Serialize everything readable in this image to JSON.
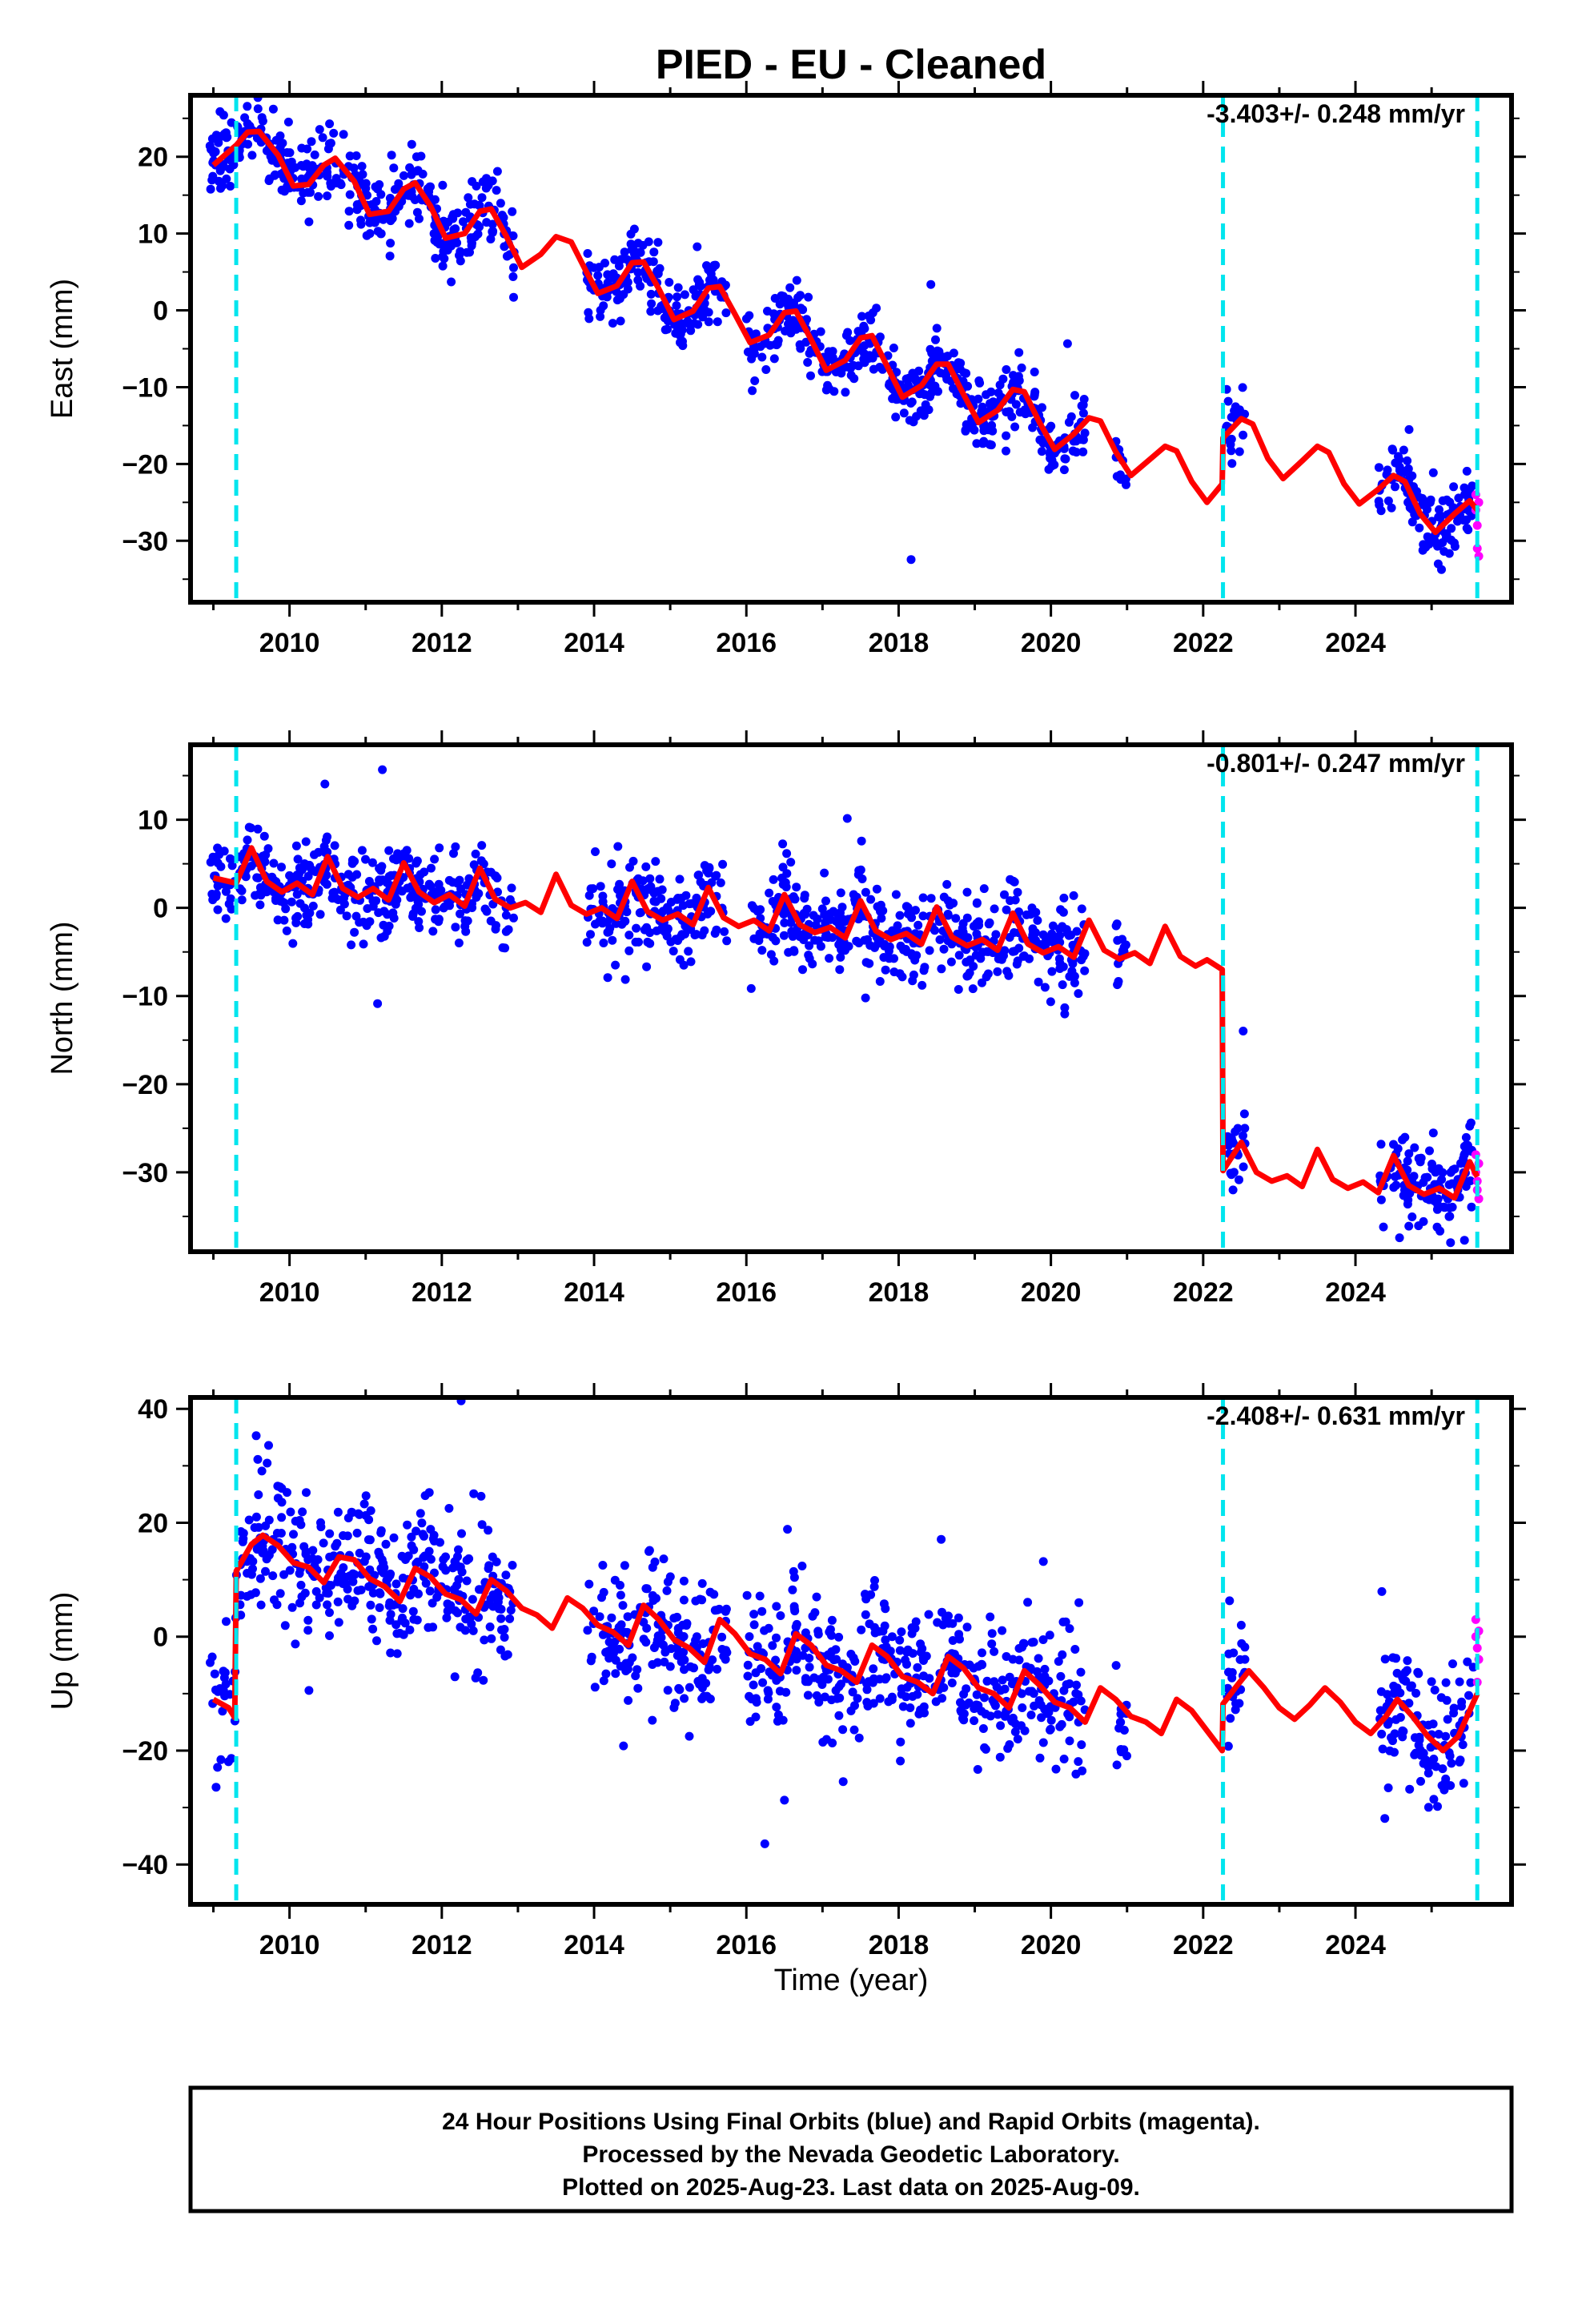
{
  "title": "PIED  - EU - Cleaned",
  "xlabel": "Time (year)",
  "footer": {
    "line1": "24 Hour Positions Using Final Orbits (blue) and Rapid Orbits (magenta).",
    "line2": "Processed by the Nevada Geodetic Laboratory.",
    "line3": "Plotted on 2025-Aug-23. Last data on 2025-Aug-09."
  },
  "colors": {
    "final_points": "#0000ff",
    "rapid_points": "#ff00ff",
    "model_line": "#ff0000",
    "event_lines": "#00e5ee"
  },
  "chart_data": [
    {
      "type": "scatter",
      "title": "",
      "ylabel": "East (mm)",
      "rate_label": "-3.403+/- 0.248 mm/yr",
      "xlim": [
        2008.7,
        2026.05
      ],
      "ylim": [
        -38,
        28
      ],
      "xticks": [
        2010,
        2012,
        2014,
        2016,
        2018,
        2020,
        2022,
        2024
      ],
      "yticks": [
        -30,
        -20,
        -10,
        0,
        10,
        20
      ],
      "grid": false,
      "event_lines": [
        2009.3,
        2022.26,
        2025.6
      ],
      "model": [
        [
          2009.0,
          18.9
        ],
        [
          2009.3,
          21.5
        ],
        [
          2009.45,
          23.2
        ],
        [
          2009.6,
          23.3
        ],
        [
          2009.85,
          20.2
        ],
        [
          2010.05,
          16.2
        ],
        [
          2010.25,
          16.4
        ],
        [
          2010.45,
          18.9
        ],
        [
          2010.6,
          19.8
        ],
        [
          2010.85,
          16.8
        ],
        [
          2011.05,
          12.5
        ],
        [
          2011.3,
          12.9
        ],
        [
          2011.5,
          15.8
        ],
        [
          2011.65,
          16.6
        ],
        [
          2011.85,
          13.6
        ],
        [
          2012.05,
          9.4
        ],
        [
          2012.3,
          10.0
        ],
        [
          2012.5,
          12.9
        ],
        [
          2012.65,
          13.2
        ],
        [
          2012.85,
          9.6
        ],
        [
          2013.05,
          5.6
        ],
        [
          2013.3,
          7.3
        ],
        [
          2013.5,
          9.6
        ],
        [
          2013.7,
          8.9
        ],
        [
          2013.9,
          5.0
        ],
        [
          2014.05,
          2.2
        ],
        [
          2014.3,
          3.2
        ],
        [
          2014.5,
          6.2
        ],
        [
          2014.65,
          6.3
        ],
        [
          2014.85,
          2.8
        ],
        [
          2015.05,
          -1.2
        ],
        [
          2015.3,
          -0.1
        ],
        [
          2015.5,
          2.9
        ],
        [
          2015.65,
          3.1
        ],
        [
          2015.85,
          -0.5
        ],
        [
          2016.05,
          -4.2
        ],
        [
          2016.3,
          -3.2
        ],
        [
          2016.5,
          -0.3
        ],
        [
          2016.65,
          -0.1
        ],
        [
          2016.85,
          -3.8
        ],
        [
          2017.05,
          -7.8
        ],
        [
          2017.3,
          -6.5
        ],
        [
          2017.5,
          -3.6
        ],
        [
          2017.65,
          -3.3
        ],
        [
          2017.85,
          -7.3
        ],
        [
          2018.05,
          -11.3
        ],
        [
          2018.3,
          -9.8
        ],
        [
          2018.5,
          -7.0
        ],
        [
          2018.65,
          -7.0
        ],
        [
          2018.85,
          -10.9
        ],
        [
          2019.05,
          -14.6
        ],
        [
          2019.3,
          -13.0
        ],
        [
          2019.5,
          -10.3
        ],
        [
          2019.65,
          -10.6
        ],
        [
          2019.85,
          -14.6
        ],
        [
          2020.05,
          -18.1
        ],
        [
          2020.3,
          -16.1
        ],
        [
          2020.5,
          -14.0
        ],
        [
          2020.65,
          -14.4
        ],
        [
          2020.85,
          -18.4
        ],
        [
          2021.05,
          -21.5
        ],
        [
          2021.3,
          -19.4
        ],
        [
          2021.5,
          -17.7
        ],
        [
          2021.65,
          -18.3
        ],
        [
          2021.85,
          -22.3
        ],
        [
          2022.05,
          -25.0
        ],
        [
          2022.25,
          -22.6
        ],
        [
          2022.26,
          -16.6
        ],
        [
          2022.5,
          -14.1
        ],
        [
          2022.65,
          -14.8
        ],
        [
          2022.85,
          -19.3
        ],
        [
          2023.05,
          -21.9
        ],
        [
          2023.3,
          -19.6
        ],
        [
          2023.5,
          -17.7
        ],
        [
          2023.65,
          -18.5
        ],
        [
          2023.85,
          -22.6
        ],
        [
          2024.05,
          -25.2
        ],
        [
          2024.3,
          -23.3
        ],
        [
          2024.5,
          -21.5
        ],
        [
          2024.65,
          -22.3
        ],
        [
          2024.85,
          -26.5
        ],
        [
          2025.05,
          -28.9
        ],
        [
          2025.3,
          -26.5
        ],
        [
          2025.5,
          -24.8
        ],
        [
          2025.6,
          -26.0
        ]
      ],
      "segments": [
        [
          2008.95,
          2012.95,
          "pre"
        ],
        [
          2013.9,
          2015.75,
          "mid"
        ],
        [
          2016.0,
          2019.85,
          "mid"
        ],
        [
          2019.85,
          2020.45,
          "late"
        ],
        [
          2020.85,
          2021.0,
          "late"
        ],
        [
          2022.3,
          2022.55,
          "post"
        ],
        [
          2024.3,
          2025.55,
          "post"
        ]
      ],
      "scatter_sigma": 2.2,
      "rapid": [
        [
          2025.58,
          -24
        ],
        [
          2025.58,
          -26
        ],
        [
          2025.6,
          -28
        ],
        [
          2025.6,
          -31
        ],
        [
          2025.62,
          -32
        ],
        [
          2025.62,
          -25
        ]
      ]
    },
    {
      "type": "scatter",
      "title": "",
      "ylabel": "North (mm)",
      "rate_label": "-0.801+/- 0.247 mm/yr",
      "xlim": [
        2008.7,
        2026.05
      ],
      "ylim": [
        -39,
        18.5
      ],
      "xticks": [
        2010,
        2012,
        2014,
        2016,
        2018,
        2020,
        2022,
        2024
      ],
      "yticks": [
        -30,
        -20,
        -10,
        0,
        10
      ],
      "grid": false,
      "event_lines": [
        2009.3,
        2022.26,
        2025.6
      ],
      "model": [
        [
          2009.0,
          3.4
        ],
        [
          2009.3,
          2.8
        ],
        [
          2009.5,
          6.8
        ],
        [
          2009.7,
          3.0
        ],
        [
          2009.9,
          1.8
        ],
        [
          2010.1,
          2.8
        ],
        [
          2010.3,
          1.5
        ],
        [
          2010.5,
          5.8
        ],
        [
          2010.7,
          2.2
        ],
        [
          2010.9,
          1.2
        ],
        [
          2011.1,
          2.2
        ],
        [
          2011.3,
          0.9
        ],
        [
          2011.5,
          5.1
        ],
        [
          2011.7,
          1.8
        ],
        [
          2011.9,
          0.6
        ],
        [
          2012.1,
          1.5
        ],
        [
          2012.3,
          0.2
        ],
        [
          2012.5,
          4.5
        ],
        [
          2012.7,
          1.0
        ],
        [
          2012.9,
          0.0
        ],
        [
          2013.1,
          0.6
        ],
        [
          2013.3,
          -0.5
        ],
        [
          2013.5,
          3.8
        ],
        [
          2013.7,
          0.3
        ],
        [
          2013.9,
          -0.7
        ],
        [
          2014.1,
          0.0
        ],
        [
          2014.3,
          -1.2
        ],
        [
          2014.5,
          3.0
        ],
        [
          2014.7,
          -0.4
        ],
        [
          2014.9,
          -1.4
        ],
        [
          2015.1,
          -0.7
        ],
        [
          2015.3,
          -1.9
        ],
        [
          2015.5,
          2.3
        ],
        [
          2015.7,
          -1.1
        ],
        [
          2015.9,
          -2.1
        ],
        [
          2016.1,
          -1.4
        ],
        [
          2016.3,
          -2.6
        ],
        [
          2016.5,
          1.5
        ],
        [
          2016.7,
          -1.9
        ],
        [
          2016.9,
          -2.8
        ],
        [
          2017.1,
          -2.2
        ],
        [
          2017.3,
          -3.4
        ],
        [
          2017.5,
          0.8
        ],
        [
          2017.7,
          -2.6
        ],
        [
          2017.9,
          -3.6
        ],
        [
          2018.1,
          -2.9
        ],
        [
          2018.3,
          -4.1
        ],
        [
          2018.5,
          0.1
        ],
        [
          2018.7,
          -3.3
        ],
        [
          2018.9,
          -4.3
        ],
        [
          2019.1,
          -3.6
        ],
        [
          2019.3,
          -4.8
        ],
        [
          2019.5,
          -0.6
        ],
        [
          2019.7,
          -4.1
        ],
        [
          2019.9,
          -5.1
        ],
        [
          2020.1,
          -4.4
        ],
        [
          2020.3,
          -5.6
        ],
        [
          2020.5,
          -1.4
        ],
        [
          2020.7,
          -4.8
        ],
        [
          2020.9,
          -5.8
        ],
        [
          2021.1,
          -5.1
        ],
        [
          2021.3,
          -6.3
        ],
        [
          2021.5,
          -2.1
        ],
        [
          2021.7,
          -5.5
        ],
        [
          2021.9,
          -6.6
        ],
        [
          2022.05,
          -5.9
        ],
        [
          2022.25,
          -7.0
        ],
        [
          2022.26,
          -29.8
        ],
        [
          2022.5,
          -26.6
        ],
        [
          2022.7,
          -30.0
        ],
        [
          2022.9,
          -31.0
        ],
        [
          2023.1,
          -30.4
        ],
        [
          2023.3,
          -31.6
        ],
        [
          2023.5,
          -27.4
        ],
        [
          2023.7,
          -30.8
        ],
        [
          2023.9,
          -31.8
        ],
        [
          2024.1,
          -31.1
        ],
        [
          2024.3,
          -32.3
        ],
        [
          2024.5,
          -28.1
        ],
        [
          2024.7,
          -31.5
        ],
        [
          2024.9,
          -32.5
        ],
        [
          2025.1,
          -31.8
        ],
        [
          2025.3,
          -32.9
        ],
        [
          2025.5,
          -28.8
        ],
        [
          2025.6,
          -30.5
        ]
      ],
      "segments": [
        [
          2008.95,
          2012.95,
          "pre"
        ],
        [
          2013.9,
          2015.75,
          "mid"
        ],
        [
          2016.0,
          2019.85,
          "mid"
        ],
        [
          2019.85,
          2020.45,
          "late"
        ],
        [
          2020.85,
          2021.0,
          "late"
        ],
        [
          2022.3,
          2022.55,
          "post"
        ],
        [
          2024.3,
          2025.55,
          "post"
        ]
      ],
      "scatter_sigma": 2.4,
      "rapid": [
        [
          2025.58,
          -28
        ],
        [
          2025.58,
          -30
        ],
        [
          2025.6,
          -31
        ],
        [
          2025.6,
          -32
        ],
        [
          2025.62,
          -33
        ],
        [
          2025.62,
          -29
        ]
      ]
    },
    {
      "type": "scatter",
      "title": "",
      "ylabel": "Up (mm)",
      "rate_label": "-2.408+/- 0.631 mm/yr",
      "xlim": [
        2008.7,
        2026.05
      ],
      "ylim": [
        -47,
        42
      ],
      "xticks": [
        2010,
        2012,
        2014,
        2016,
        2018,
        2020,
        2022,
        2024
      ],
      "yticks": [
        -40,
        -20,
        0,
        20,
        40
      ],
      "grid": false,
      "event_lines": [
        2009.3,
        2022.26,
        2025.6
      ],
      "model": [
        [
          2009.0,
          -11.0
        ],
        [
          2009.2,
          -12.5
        ],
        [
          2009.28,
          -14.2
        ],
        [
          2009.3,
          11.5
        ],
        [
          2009.5,
          16.2
        ],
        [
          2009.65,
          17.8
        ],
        [
          2009.85,
          16.0
        ],
        [
          2010.05,
          13.0
        ],
        [
          2010.25,
          12.2
        ],
        [
          2010.45,
          9.5
        ],
        [
          2010.65,
          14.0
        ],
        [
          2010.85,
          13.5
        ],
        [
          2011.05,
          10.2
        ],
        [
          2011.25,
          8.8
        ],
        [
          2011.45,
          6.2
        ],
        [
          2011.65,
          12.0
        ],
        [
          2011.85,
          10.5
        ],
        [
          2012.05,
          7.5
        ],
        [
          2012.25,
          6.5
        ],
        [
          2012.45,
          4.0
        ],
        [
          2012.65,
          10.0
        ],
        [
          2012.85,
          8.0
        ],
        [
          2013.05,
          5.0
        ],
        [
          2013.25,
          3.8
        ],
        [
          2013.45,
          1.5
        ],
        [
          2013.65,
          6.8
        ],
        [
          2013.85,
          5.0
        ],
        [
          2014.05,
          2.0
        ],
        [
          2014.25,
          0.8
        ],
        [
          2014.45,
          -1.5
        ],
        [
          2014.65,
          5.5
        ],
        [
          2014.85,
          3.0
        ],
        [
          2015.05,
          -0.5
        ],
        [
          2015.25,
          -2.0
        ],
        [
          2015.45,
          -4.5
        ],
        [
          2015.65,
          3.0
        ],
        [
          2015.85,
          0.5
        ],
        [
          2016.05,
          -3.0
        ],
        [
          2016.25,
          -4.0
        ],
        [
          2016.45,
          -6.5
        ],
        [
          2016.65,
          0.5
        ],
        [
          2016.85,
          -1.5
        ],
        [
          2017.05,
          -5.0
        ],
        [
          2017.25,
          -6.0
        ],
        [
          2017.45,
          -8.0
        ],
        [
          2017.65,
          -1.5
        ],
        [
          2017.85,
          -3.5
        ],
        [
          2018.05,
          -7.0
        ],
        [
          2018.25,
          -8.0
        ],
        [
          2018.45,
          -10.0
        ],
        [
          2018.65,
          -3.5
        ],
        [
          2018.85,
          -5.5
        ],
        [
          2019.05,
          -9.0
        ],
        [
          2019.25,
          -10.0
        ],
        [
          2019.45,
          -12.5
        ],
        [
          2019.65,
          -6.0
        ],
        [
          2019.85,
          -8.5
        ],
        [
          2020.05,
          -11.5
        ],
        [
          2020.25,
          -12.5
        ],
        [
          2020.45,
          -15.0
        ],
        [
          2020.65,
          -9.0
        ],
        [
          2020.85,
          -11.0
        ],
        [
          2021.05,
          -14.0
        ],
        [
          2021.25,
          -15.0
        ],
        [
          2021.45,
          -17.0
        ],
        [
          2021.65,
          -11.0
        ],
        [
          2021.85,
          -13.0
        ],
        [
          2022.05,
          -16.5
        ],
        [
          2022.25,
          -20.0
        ],
        [
          2022.26,
          -11.8
        ],
        [
          2022.45,
          -8.5
        ],
        [
          2022.6,
          -6.0
        ],
        [
          2022.8,
          -9.0
        ],
        [
          2023.0,
          -12.5
        ],
        [
          2023.2,
          -14.5
        ],
        [
          2023.4,
          -12.0
        ],
        [
          2023.6,
          -9.0
        ],
        [
          2023.8,
          -11.5
        ],
        [
          2024.0,
          -15.0
        ],
        [
          2024.2,
          -17.0
        ],
        [
          2024.4,
          -14.0
        ],
        [
          2024.55,
          -11.0
        ],
        [
          2024.75,
          -14.0
        ],
        [
          2024.95,
          -17.5
        ],
        [
          2025.15,
          -20.0
        ],
        [
          2025.35,
          -17.5
        ],
        [
          2025.6,
          -10.0
        ]
      ],
      "segments": [
        [
          2008.95,
          2012.95,
          "pre"
        ],
        [
          2013.9,
          2015.75,
          "mid"
        ],
        [
          2016.0,
          2019.85,
          "mid"
        ],
        [
          2019.85,
          2020.45,
          "late"
        ],
        [
          2020.85,
          2021.0,
          "late"
        ],
        [
          2022.3,
          2022.55,
          "post"
        ],
        [
          2024.3,
          2025.55,
          "post"
        ]
      ],
      "scatter_sigma": 6.0,
      "rapid": [
        [
          2025.58,
          3
        ],
        [
          2025.58,
          0
        ],
        [
          2025.6,
          -2
        ],
        [
          2025.6,
          -8
        ],
        [
          2025.62,
          1
        ],
        [
          2025.62,
          -4
        ]
      ]
    }
  ]
}
